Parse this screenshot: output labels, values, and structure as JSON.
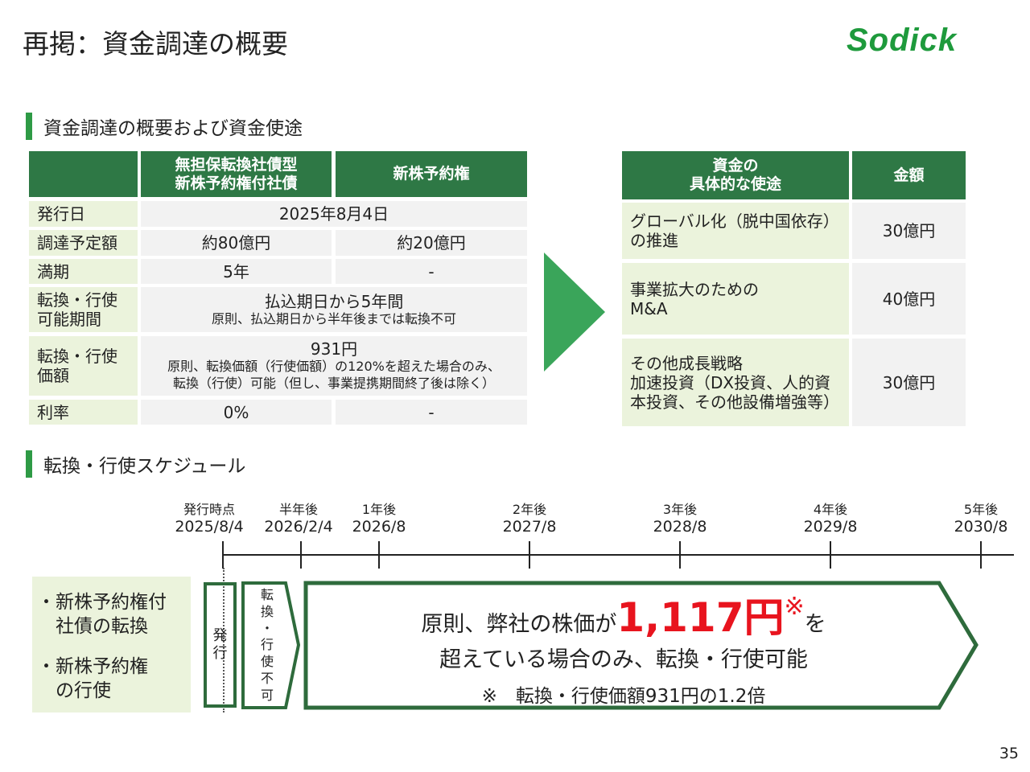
{
  "title": "再掲：資金調達の概要",
  "logo": "Sodick",
  "section1": "資金調達の概要および資金使途",
  "section2": "転換・行使スケジュール",
  "left_table": {
    "headers": [
      "",
      "無担保転換社債型\n新株予約権付社債",
      "新株予約権"
    ],
    "rows": [
      {
        "label": "発行日",
        "merged": "2025年8月4日"
      },
      {
        "label": "調達予定額",
        "c1": "約80億円",
        "c2": "約20億円"
      },
      {
        "label": "満期",
        "c1": "5年",
        "c2": "-"
      },
      {
        "label": "転換・行使\n可能期間",
        "merged": "払込期日から5年間",
        "note": "原則、払込期日から半年後までは転換不可"
      },
      {
        "label": "転換・行使\n価額",
        "merged": "931円",
        "note": "原則、転換価額（行使価額）の120%を超えた場合のみ、\n転換（行使）可能（但し、事業提携期間終了後は除く）"
      },
      {
        "label": "利率",
        "c1": "0%",
        "c2": "-"
      }
    ]
  },
  "right_table": {
    "headers": [
      "資金の\n具体的な使途",
      "金額"
    ],
    "rows": [
      {
        "use": "グローバル化（脱中国依存）\nの推進",
        "amount": "30億円"
      },
      {
        "use": "事業拡大のための\nM&A",
        "amount": "40億円"
      },
      {
        "use": "その他成長戦略\n加速投資（DX投資、人的資\n本投資、その他設備増強等）",
        "amount": "30億円"
      }
    ]
  },
  "timeline": [
    {
      "label": "発行時点",
      "date": "2025/8/4"
    },
    {
      "label": "半年後",
      "date": "2026/2/4"
    },
    {
      "label": "1年後",
      "date": "2026/8"
    },
    {
      "label": "2年後",
      "date": "2027/8"
    },
    {
      "label": "3年後",
      "date": "2028/8"
    },
    {
      "label": "4年後",
      "date": "2029/8"
    },
    {
      "label": "5年後",
      "date": "2030/8"
    }
  ],
  "schedule": {
    "items": [
      "・新株予約権付\n　社債の転換",
      "・新株予約権\n　の行使"
    ],
    "issue": "発\n行",
    "no_convert": "転\n換\n・\n行\n使\n不\n可",
    "main_pre": "原則、弊社の株価が",
    "main_price": "1,117円",
    "main_mark": "※",
    "main_post": "を",
    "main_line2": "超えている場合のみ、転換・行使可能",
    "note": "※　転換・行使価額931円の1.2倍"
  },
  "page_number": "35",
  "colors": {
    "header": "#2e7845",
    "label_bg": "#ebf3dc",
    "value_bg": "#f2f2f2",
    "accent": "#2e9a45",
    "price": "#e8141e"
  }
}
